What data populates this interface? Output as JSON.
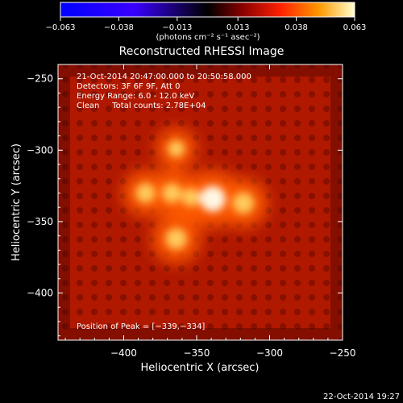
{
  "colorbar": {
    "ticks": [
      "-0.063",
      "-0.038",
      "-0.013",
      "0.013",
      "0.038",
      "0.063"
    ],
    "unit_label": "(photons cm⁻² s⁻¹ asec⁻²)",
    "range": [
      -0.063,
      0.063
    ]
  },
  "chart_data": {
    "type": "heatmap",
    "title": "Reconstructed RHESSI Image",
    "xlabel": "Heliocentric X (arcsec)",
    "ylabel": "Heliocentric Y (arcsec)",
    "xlim": [
      -445,
      -250
    ],
    "ylim": [
      -433,
      -240
    ],
    "xticks": [
      -400,
      -350,
      -300,
      -250
    ],
    "yticks": [
      -250,
      -300,
      -350,
      -400
    ],
    "xtick_labels": [
      "−400",
      "−350",
      "−300",
      "−250"
    ],
    "ytick_labels": [
      "−250",
      "−300",
      "−350",
      "−400"
    ],
    "annotations": [
      "21-Oct-2014 20:47:00.000 to 20:50:58.000",
      "Detectors: 3F 6F 9F, Att 0",
      "Energy Range: 6.0 - 12.0 keV",
      "Clean     Total counts: 2.78E+04"
    ],
    "peak_label": "Position of Peak = [−339,−334]",
    "peak": [
      -339,
      -334
    ],
    "sources": [
      {
        "x": -339,
        "y": -334,
        "intensity": 1.0
      },
      {
        "x": -318,
        "y": -337,
        "intensity": 0.8
      },
      {
        "x": -364,
        "y": -362,
        "intensity": 0.8
      },
      {
        "x": -385,
        "y": -330,
        "intensity": 0.72
      },
      {
        "x": -367,
        "y": -330,
        "intensity": 0.72
      },
      {
        "x": -364,
        "y": -299,
        "intensity": 0.6
      },
      {
        "x": -354,
        "y": -333,
        "intensity": 0.66
      }
    ]
  },
  "footer": {
    "timestamp": "22-Oct-2014 19:27"
  }
}
